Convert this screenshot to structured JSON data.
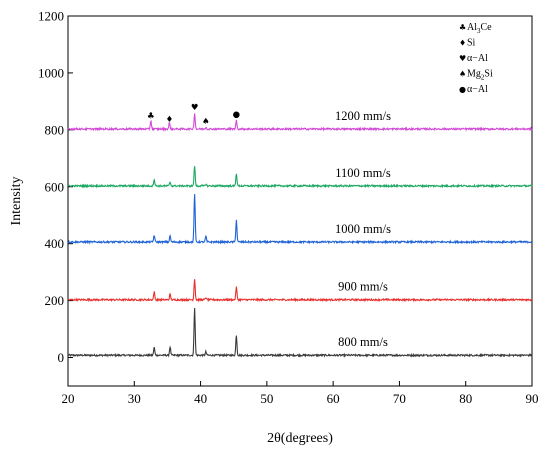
{
  "chart_data": {
    "type": "line",
    "title": "",
    "xlabel": "2θ(degrees)",
    "ylabel": "Intensity",
    "xlim": [
      20,
      90
    ],
    "ylim": [
      -100,
      1200
    ],
    "x_ticks": [
      20,
      30,
      40,
      50,
      60,
      70,
      80,
      90
    ],
    "y_ticks": [
      0,
      200,
      400,
      600,
      800,
      1000,
      1200
    ],
    "grid": false,
    "legend": {
      "placement": "top-right",
      "entries": [
        {
          "symbol": "♣",
          "label": "Al",
          "sub": "3",
          "label_after": "Ce"
        },
        {
          "symbol": "♦",
          "label": "Si",
          "sub": "",
          "label_after": ""
        },
        {
          "symbol": "♥",
          "label": "α−Al",
          "sub": "",
          "label_after": ""
        },
        {
          "symbol": "♠",
          "label": "Mg",
          "sub": "2",
          "label_after": "Si"
        },
        {
          "symbol": "●",
          "label": "α−Al",
          "sub": "",
          "label_after": ""
        }
      ]
    },
    "series": [
      {
        "name": "800 mm/s",
        "color": "#3a3a3a",
        "baseline": 8,
        "peaks": [
          {
            "x": 33.0,
            "h": 28
          },
          {
            "x": 35.4,
            "h": 30
          },
          {
            "x": 39.1,
            "h": 170
          },
          {
            "x": 40.8,
            "h": 12
          },
          {
            "x": 45.4,
            "h": 72
          }
        ]
      },
      {
        "name": "900 mm/s",
        "color": "#e8312f",
        "baseline": 203,
        "peaks": [
          {
            "x": 33.0,
            "h": 28
          },
          {
            "x": 35.4,
            "h": 20
          },
          {
            "x": 39.1,
            "h": 75
          },
          {
            "x": 40.8,
            "h": 8
          },
          {
            "x": 45.4,
            "h": 45
          }
        ]
      },
      {
        "name": "1000 mm/s",
        "color": "#1f63d6",
        "baseline": 406,
        "peaks": [
          {
            "x": 33.0,
            "h": 24
          },
          {
            "x": 35.4,
            "h": 22
          },
          {
            "x": 39.1,
            "h": 172
          },
          {
            "x": 40.8,
            "h": 20
          },
          {
            "x": 45.4,
            "h": 78
          }
        ]
      },
      {
        "name": "1100 mm/s",
        "color": "#1ea863",
        "baseline": 603,
        "peaks": [
          {
            "x": 33.0,
            "h": 24
          },
          {
            "x": 35.4,
            "h": 14
          },
          {
            "x": 39.1,
            "h": 72
          },
          {
            "x": 40.8,
            "h": 6
          },
          {
            "x": 45.4,
            "h": 45
          }
        ]
      },
      {
        "name": "1200 mm/s",
        "color": "#d04ad6",
        "baseline": 803,
        "peaks": [
          {
            "x": 32.5,
            "h": 30
          },
          {
            "x": 35.3,
            "h": 22
          },
          {
            "x": 39.1,
            "h": 55
          },
          {
            "x": 40.8,
            "h": 6
          },
          {
            "x": 45.4,
            "h": 30
          }
        ]
      }
    ],
    "peak_markers": [
      {
        "x": 32.5,
        "y": 840,
        "symbol": "♣"
      },
      {
        "x": 35.3,
        "y": 828,
        "symbol": "♦"
      },
      {
        "x": 39.1,
        "y": 870,
        "symbol": "♥"
      },
      {
        "x": 40.8,
        "y": 820,
        "symbol": "♠"
      },
      {
        "x": 45.4,
        "y": 845,
        "symbol": "●"
      }
    ]
  }
}
